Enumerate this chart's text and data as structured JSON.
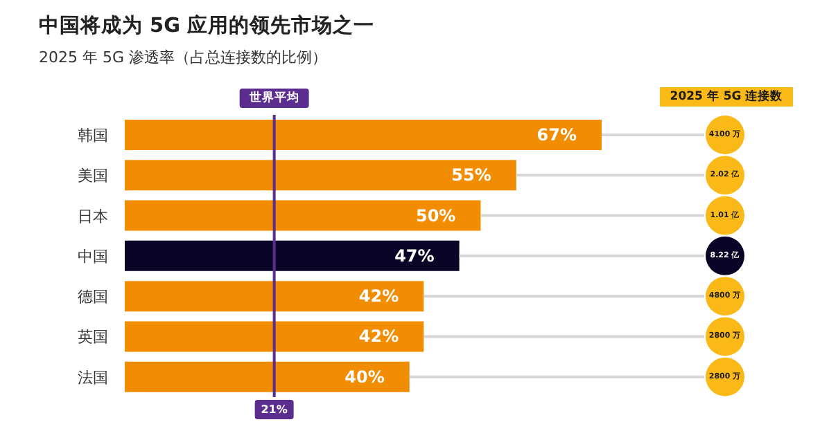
{
  "chart_data": {
    "type": "bar",
    "orientation": "horizontal",
    "title": "中国将成为 5G 应用的领先市场之一",
    "subtitle": "2025 年 5G 渗透率（占总连接数的比例）",
    "categories": [
      "韩国",
      "美国",
      "日本",
      "中国",
      "德国",
      "英国",
      "法国"
    ],
    "values": [
      67,
      55,
      50,
      47,
      42,
      42,
      40
    ],
    "colors": [
      "#f28c00",
      "#f28c00",
      "#f28c00",
      "#0a0427",
      "#f28c00",
      "#f28c00",
      "#f28c00"
    ],
    "value_labels": [
      "67%",
      "55%",
      "50%",
      "47%",
      "42%",
      "42%",
      "40%"
    ],
    "ref_lines": [
      {
        "axis": "x",
        "value": 21,
        "label": "世界平均",
        "color": "#5b2d8e"
      }
    ],
    "annotations": [
      "2025 年 5G 连接数",
      {
        "text": "21%",
        "x": 21
      },
      "4100 万",
      "2.02 亿",
      "1.01 亿",
      "8.22 亿",
      "4800 万",
      "2800 万",
      "2800 万"
    ]
  }
}
